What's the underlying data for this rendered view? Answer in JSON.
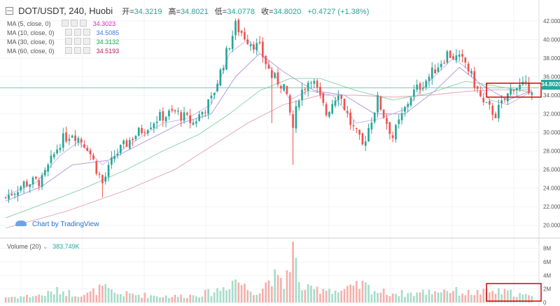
{
  "header": {
    "symbol": "DOT/USDT, 240, Huobi",
    "open_label": "开=",
    "open_value": "34.3219",
    "high_label": "高=",
    "high_value": "34.8021",
    "low_label": "低=",
    "low_value": "34.0778",
    "close_label": "收=",
    "close_value": "34.8020",
    "change": "+0.4727 (+1.38%)"
  },
  "indicators": [
    {
      "label": "MA (5, close, 0)",
      "value": "34.3023",
      "color": "#e91ec8"
    },
    {
      "label": "MA (10, close, 0)",
      "value": "34.5085",
      "color": "#3c78d8"
    },
    {
      "label": "MA (30, close, 0)",
      "value": "34.3132",
      "color": "#1aa34a"
    },
    {
      "label": "MA (60, close, 0)",
      "value": "34.5193",
      "color": "#b5195a"
    }
  ],
  "branding": {
    "text": "Chart by TradingView"
  },
  "volume": {
    "label": "Volume (20)",
    "value": "383.749K"
  },
  "current_price": "34.8020",
  "colors": {
    "up": "#26a69a",
    "down": "#ef5350",
    "vol_up": "#a8dcc9",
    "vol_down": "#f5b1ad",
    "ma_short": "#b49ce0",
    "ma_mid": "#8fd6a8",
    "ma_long": "#e3a6b7",
    "highlight": "#d50000"
  },
  "chart_data": {
    "type": "candlestick",
    "price_axis_ticks": [
      "42.0000",
      "40.0000",
      "38.0000",
      "36.0000",
      "34.0000",
      "32.0000",
      "30.0000",
      "28.0000",
      "26.0000",
      "24.0000",
      "22.0000",
      "20.0000"
    ],
    "price_axis_values": [
      42,
      40,
      38,
      36,
      34,
      32,
      30,
      28,
      26,
      24,
      22,
      20
    ],
    "volume_axis_ticks": [
      "8M",
      "6M",
      "4M",
      "2M",
      "0"
    ],
    "volume_axis_values": [
      8,
      6,
      4,
      2,
      0
    ],
    "ylim": [
      19,
      43.5
    ],
    "volume_ylim": [
      0,
      9
    ],
    "anchors": [
      [
        0,
        23.0,
        0.8
      ],
      [
        6,
        24.5,
        0.9
      ],
      [
        12,
        24.8,
        1.1
      ],
      [
        18,
        29.0,
        1.8
      ],
      [
        22,
        30.0,
        1.3
      ],
      [
        27,
        28.5,
        1.2
      ],
      [
        32,
        24.5,
        2.2
      ],
      [
        36,
        27.5,
        1.3
      ],
      [
        42,
        29.5,
        1.2
      ],
      [
        50,
        31.5,
        1.0
      ],
      [
        56,
        32.2,
        0.9
      ],
      [
        62,
        31.0,
        1.1
      ],
      [
        68,
        33.5,
        1.5
      ],
      [
        72,
        37.5,
        2.2
      ],
      [
        76,
        41.5,
        3.5
      ],
      [
        80,
        40.0,
        2.0
      ],
      [
        84,
        39.0,
        1.6
      ],
      [
        88,
        36.0,
        4.0
      ],
      [
        92,
        35.0,
        2.4
      ],
      [
        95,
        30.5,
        8.8
      ],
      [
        97,
        34.0,
        2.5
      ],
      [
        101,
        36.0,
        1.8
      ],
      [
        106,
        32.0,
        2.2
      ],
      [
        110,
        34.5,
        1.6
      ],
      [
        114,
        31.0,
        2.0
      ],
      [
        118,
        28.5,
        2.6
      ],
      [
        123,
        33.5,
        1.6
      ],
      [
        128,
        29.5,
        1.4
      ],
      [
        134,
        34.0,
        1.3
      ],
      [
        140,
        36.0,
        1.6
      ],
      [
        146,
        38.5,
        1.9
      ],
      [
        152,
        37.5,
        1.4
      ],
      [
        158,
        33.0,
        1.5
      ],
      [
        162,
        32.0,
        1.6
      ],
      [
        168,
        35.0,
        1.4
      ],
      [
        174,
        34.8,
        0.8
      ]
    ],
    "ma_fast": [
      [
        0,
        23.2
      ],
      [
        10,
        24.6
      ],
      [
        18,
        27.5
      ],
      [
        24,
        29.0
      ],
      [
        32,
        26.5
      ],
      [
        40,
        28.5
      ],
      [
        52,
        31.0
      ],
      [
        60,
        31.5
      ],
      [
        68,
        33.0
      ],
      [
        74,
        38.5
      ],
      [
        80,
        40.0
      ],
      [
        86,
        37.8
      ],
      [
        94,
        33.5
      ],
      [
        100,
        34.5
      ],
      [
        108,
        34.0
      ],
      [
        116,
        31.0
      ],
      [
        124,
        31.5
      ],
      [
        132,
        32.5
      ],
      [
        140,
        35.5
      ],
      [
        148,
        38.0
      ],
      [
        154,
        36.5
      ],
      [
        160,
        33.5
      ],
      [
        166,
        33.0
      ],
      [
        174,
        34.4
      ]
    ],
    "ma_mid": [
      [
        0,
        22.6
      ],
      [
        12,
        24.2
      ],
      [
        22,
        26.5
      ],
      [
        34,
        27.0
      ],
      [
        46,
        29.0
      ],
      [
        58,
        31.0
      ],
      [
        68,
        32.0
      ],
      [
        76,
        36.0
      ],
      [
        84,
        38.5
      ],
      [
        92,
        36.5
      ],
      [
        102,
        34.5
      ],
      [
        112,
        34.0
      ],
      [
        122,
        32.0
      ],
      [
        132,
        32.0
      ],
      [
        142,
        34.5
      ],
      [
        150,
        37.0
      ],
      [
        158,
        35.0
      ],
      [
        166,
        33.5
      ],
      [
        174,
        34.5
      ]
    ],
    "ma_slow": [
      [
        0,
        20.8
      ],
      [
        14,
        22.5
      ],
      [
        26,
        24.0
      ],
      [
        40,
        26.0
      ],
      [
        52,
        28.0
      ],
      [
        64,
        29.8
      ],
      [
        74,
        32.0
      ],
      [
        84,
        34.5
      ],
      [
        94,
        35.8
      ],
      [
        104,
        35.8
      ],
      [
        116,
        34.5
      ],
      [
        128,
        33.5
      ],
      [
        140,
        34.2
      ],
      [
        152,
        35.5
      ],
      [
        162,
        35.0
      ],
      [
        174,
        34.3
      ]
    ],
    "ma_long": [
      [
        0,
        19.7
      ],
      [
        20,
        21.5
      ],
      [
        40,
        23.8
      ],
      [
        56,
        26.0
      ],
      [
        68,
        28.5
      ],
      [
        80,
        31.0
      ],
      [
        92,
        33.0
      ],
      [
        104,
        34.0
      ],
      [
        116,
        34.0
      ],
      [
        128,
        33.8
      ],
      [
        140,
        34.0
      ],
      [
        152,
        34.4
      ],
      [
        162,
        34.6
      ],
      [
        174,
        34.6
      ]
    ],
    "highlights": [
      {
        "panel": "price",
        "from_index": 160,
        "to_index": 174,
        "y_top": 35.3,
        "y_bottom": 33.8
      },
      {
        "panel": "volume",
        "from_index": 160,
        "to_index": 174,
        "v_top": 2.8,
        "v_bottom": 0
      }
    ]
  }
}
